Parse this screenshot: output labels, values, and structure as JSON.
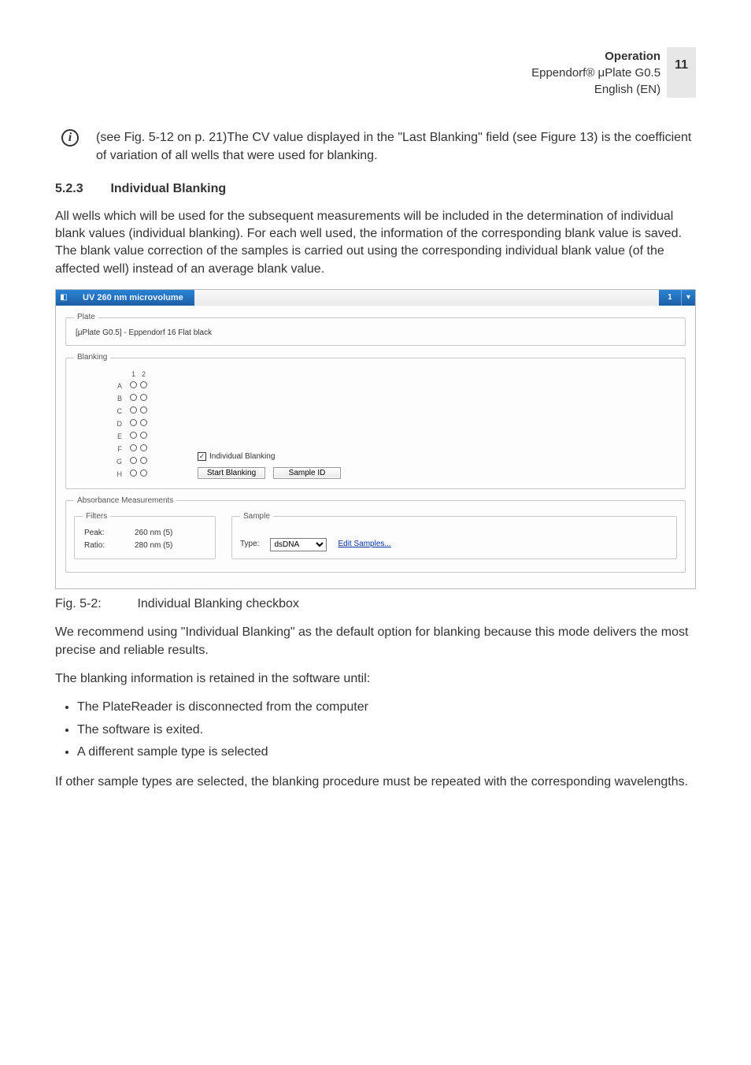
{
  "header": {
    "title": "Operation",
    "product": "Eppendorf® μPlate G0.5",
    "lang": "English (EN)",
    "page": "11"
  },
  "info_icon_glyph": "i",
  "info_text": "(see Fig. 5-12 on p. 21)The CV value displayed in the \"Last Blanking\" field (see Figure 13) is the coefficient of variation of all wells that were used for blanking.",
  "section": {
    "number": "5.2.3",
    "title": "Individual Blanking"
  },
  "body1": "All wells which will be used for the subsequent measurements will be included in the determination of individual blank values (individual blanking). For each well used, the information of the corresponding blank value is saved. The blank value correction of the samples is carried out using the corresponding individual blank value (of the affected well) instead of an average blank value.",
  "app": {
    "title": "UV 260 nm microvolume",
    "tab_number": "1",
    "tab_dd_glyph": "▾",
    "plate": {
      "legend": "Plate",
      "name": "[μPlate G0.5] - Eppendorf 16 Flat black"
    },
    "blanking": {
      "legend": "Blanking",
      "col_headers": [
        "1",
        "2"
      ],
      "row_headers": [
        "A",
        "B",
        "C",
        "D",
        "E",
        "F",
        "G",
        "H"
      ],
      "checkbox_label": "Individual Blanking",
      "checkbox_checked_glyph": "✓",
      "start_btn": "Start Blanking",
      "sample_id_btn": "Sample ID"
    },
    "abs": {
      "legend": "Absorbance Measurements",
      "filters": {
        "legend": "Filters",
        "peak_label": "Peak:",
        "peak_value": "260 nm (5)",
        "ratio_label": "Ratio:",
        "ratio_value": "280 nm (5)"
      },
      "sample": {
        "legend": "Sample",
        "type_label": "Type:",
        "type_value": "dsDNA",
        "edit_link": "Edit Samples..."
      }
    }
  },
  "fig": {
    "no": "Fig. 5-2:",
    "caption": "Individual Blanking checkbox"
  },
  "body2": "We recommend using \"Individual Blanking\" as the default option for blanking because this mode delivers the most precise and reliable results.",
  "body3": "The blanking information is retained in the software until:",
  "bullets": [
    "The PlateReader is disconnected from the computer",
    "The software is exited.",
    "A different sample type is selected"
  ],
  "body4": "If other sample types are selected, the blanking procedure must be repeated with the corresponding wavelengths."
}
